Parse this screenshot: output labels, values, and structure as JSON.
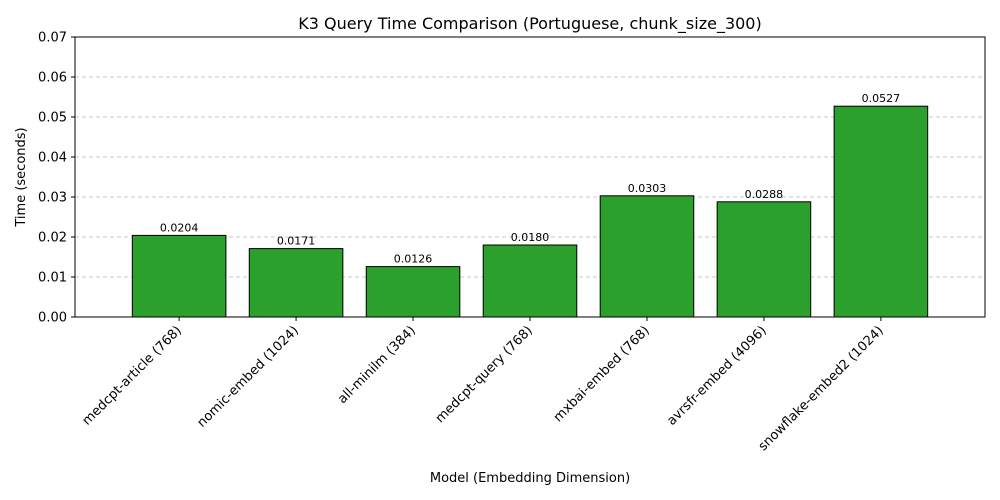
{
  "chart_data": {
    "type": "bar",
    "title": "K3 Query Time Comparison (Portuguese, chunk_size_300)",
    "xlabel": "Model (Embedding Dimension)",
    "ylabel": "Time (seconds)",
    "categories": [
      "medcpt-article (768)",
      "nomic-embed (1024)",
      "all-minilm (384)",
      "medcpt-query (768)",
      "mxbai-embed (768)",
      "avrsfr-embed (4096)",
      "snowflake-embed2 (1024)"
    ],
    "values": [
      0.0204,
      0.0171,
      0.0126,
      0.018,
      0.0303,
      0.0288,
      0.0527
    ],
    "value_labels": [
      "0.0204",
      "0.0171",
      "0.0126",
      "0.0180",
      "0.0303",
      "0.0288",
      "0.0527"
    ],
    "ylim": [
      0,
      0.07
    ],
    "yticks": [
      0,
      0.01,
      0.02,
      0.03,
      0.04,
      0.05,
      0.06,
      0.07
    ],
    "ytick_labels": [
      "0.00",
      "0.01",
      "0.02",
      "0.03",
      "0.04",
      "0.05",
      "0.06",
      "0.07"
    ],
    "grid": "y-dashed",
    "legend": "none",
    "bar_color": "#2ca02c",
    "bar_edge_color": "#000000",
    "grid_color": "#c8c8c8"
  }
}
